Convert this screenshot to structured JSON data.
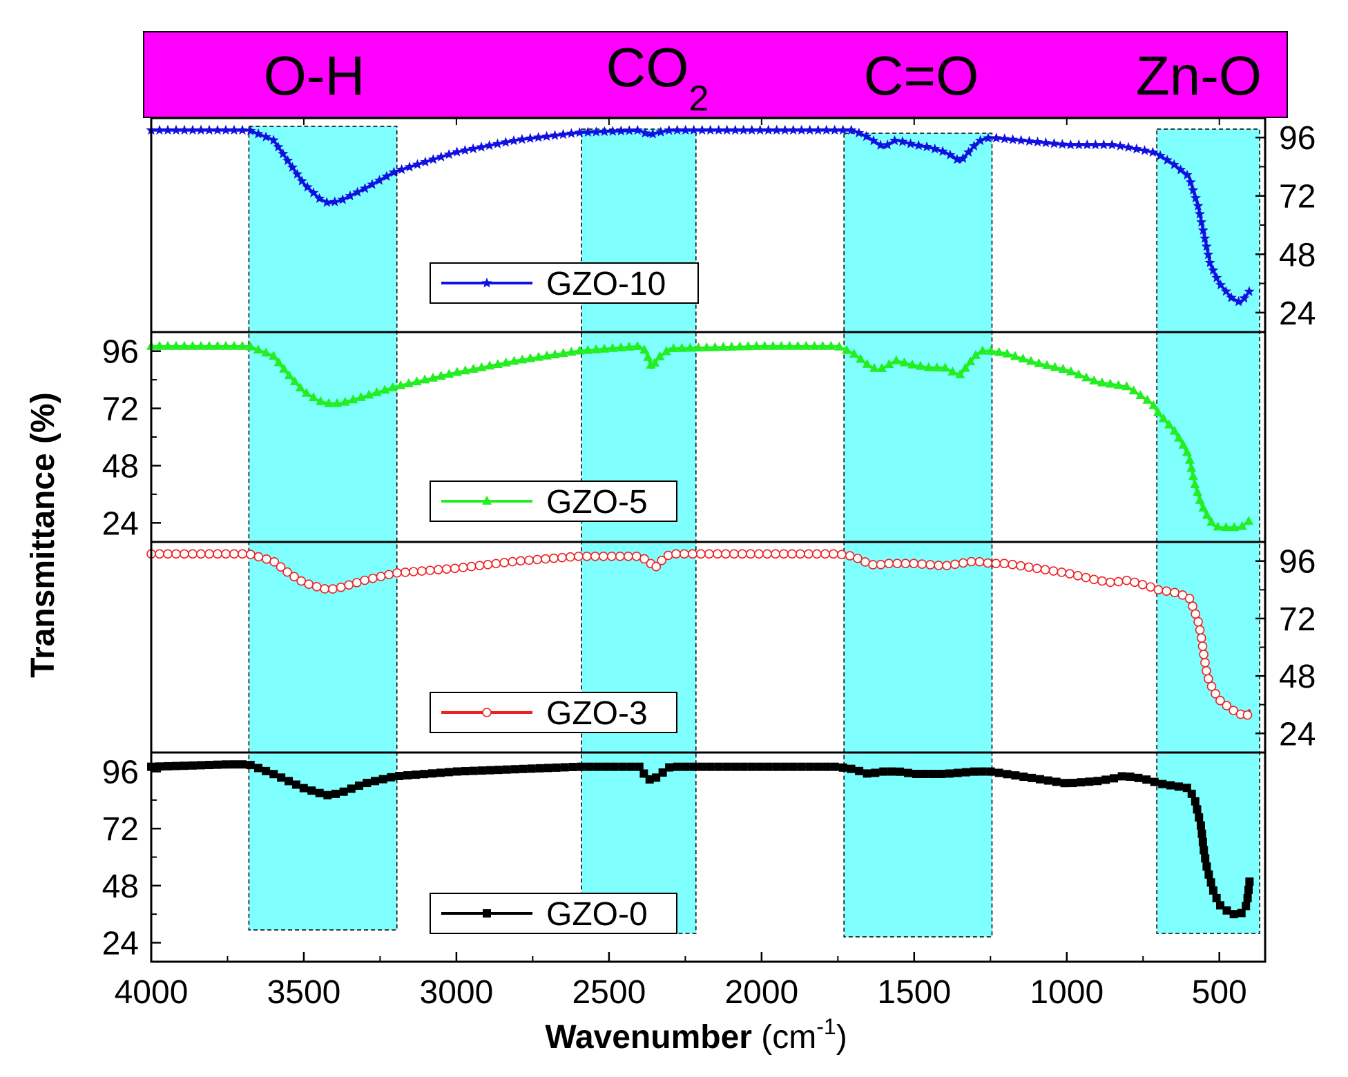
{
  "chart_data": {
    "type": "line",
    "layout": "stacked-panels",
    "xlabel": "Wavenumber",
    "xlabel_unit_prefix": " (cm",
    "xlabel_unit_sup": "-1",
    "xlabel_unit_suffix": ")",
    "ylabel": "Transmittance (%)",
    "xlim": [
      4000,
      350
    ],
    "x_ticks": [
      4000,
      3500,
      3000,
      2500,
      2000,
      1500,
      1000,
      500
    ],
    "y_ticks": [
      24,
      48,
      72,
      96
    ],
    "header_color": "#ff00ff",
    "band_color": "#80ffff",
    "bands": [
      {
        "name": "O-H",
        "text": "O-H",
        "from": 3680,
        "to": 3195
      },
      {
        "name": "CO2",
        "text": "CO",
        "subscript": "2",
        "from": 2590,
        "to": 2215
      },
      {
        "name": "C=O",
        "text": "C=O",
        "from": 1730,
        "to": 1245
      },
      {
        "name": "Zn-O",
        "text": "Zn-O",
        "from": 705,
        "to": 368
      }
    ],
    "series": [
      {
        "name": "GZO-10",
        "color": "#1010e0",
        "marker": "star",
        "ylim": [
          16,
          104
        ],
        "y_axis_side": "right",
        "x": [
          4000,
          3750,
          3680,
          3600,
          3550,
          3500,
          3450,
          3420,
          3380,
          3300,
          3200,
          3000,
          2800,
          2600,
          2400,
          2370,
          2340,
          2300,
          2000,
          1750,
          1700,
          1650,
          1600,
          1560,
          1500,
          1450,
          1400,
          1370,
          1350,
          1300,
          1280,
          1250,
          1000,
          850,
          800,
          720,
          700,
          650,
          600,
          590,
          570,
          550,
          530,
          500,
          460,
          430,
          400
        ],
        "values": [
          99,
          99,
          99,
          95,
          86,
          77,
          71,
          69,
          70,
          75,
          82,
          90,
          95,
          98,
          99,
          97,
          98,
          99,
          99,
          99,
          99,
          96,
          92,
          95,
          93,
          92,
          90,
          88,
          86,
          93,
          95,
          96,
          93,
          93,
          92,
          90,
          89,
          85,
          80,
          76,
          68,
          56,
          44,
          36,
          30,
          28,
          33
        ]
      },
      {
        "name": "GZO-5",
        "color": "#22ee22",
        "marker": "triangle",
        "ylim": [
          16,
          104
        ],
        "y_axis_side": "left",
        "x": [
          4000,
          3750,
          3680,
          3600,
          3550,
          3500,
          3450,
          3420,
          3380,
          3300,
          3200,
          3000,
          2800,
          2600,
          2400,
          2380,
          2360,
          2340,
          2300,
          2000,
          1750,
          1700,
          1650,
          1620,
          1600,
          1560,
          1500,
          1450,
          1400,
          1370,
          1350,
          1300,
          1280,
          1250,
          1200,
          1100,
          1000,
          900,
          850,
          800,
          720,
          700,
          650,
          620,
          600,
          580,
          560,
          540,
          520,
          500,
          460,
          430,
          400
        ],
        "values": [
          98,
          98,
          98,
          94,
          86,
          79,
          75,
          74,
          74,
          77,
          81,
          87,
          92,
          96,
          98,
          96,
          89,
          93,
          97,
          98,
          98,
          95,
          90,
          88,
          89,
          92,
          90,
          89,
          89,
          87,
          86,
          94,
          96,
          96,
          95,
          91,
          88,
          83,
          82,
          81,
          74,
          70,
          63,
          57,
          52,
          40,
          32,
          27,
          23,
          22,
          22,
          22,
          25
        ]
      },
      {
        "name": "GZO-3",
        "color": "#ee2020",
        "marker": "open-circle",
        "ylim": [
          16,
          104
        ],
        "y_axis_side": "right",
        "x": [
          4000,
          3750,
          3680,
          3600,
          3550,
          3500,
          3450,
          3420,
          3380,
          3300,
          3200,
          3000,
          2800,
          2600,
          2400,
          2370,
          2350,
          2330,
          2300,
          2000,
          1750,
          1700,
          1650,
          1620,
          1600,
          1500,
          1400,
          1300,
          1250,
          1200,
          1100,
          1000,
          900,
          850,
          800,
          720,
          700,
          650,
          600,
          590,
          570,
          560,
          550,
          540,
          520,
          500,
          460,
          430,
          410,
          400
        ],
        "values": [
          99,
          99,
          99,
          96,
          91,
          87,
          85,
          84,
          85,
          88,
          91,
          93,
          96,
          98,
          98,
          96,
          93,
          96,
          99,
          99,
          99,
          98,
          95,
          94,
          95,
          95,
          94,
          96,
          95,
          95,
          93,
          91,
          88,
          87,
          88,
          85,
          84,
          83,
          81,
          78,
          71,
          65,
          56,
          48,
          42,
          38,
          34,
          32,
          31,
          34
        ]
      },
      {
        "name": "GZO-0",
        "color": "#000000",
        "marker": "square",
        "ylim": [
          16,
          104
        ],
        "y_axis_side": "left",
        "x": [
          4000,
          3750,
          3680,
          3600,
          3550,
          3500,
          3450,
          3420,
          3380,
          3300,
          3200,
          3000,
          2800,
          2600,
          2400,
          2380,
          2360,
          2340,
          2300,
          2000,
          1750,
          1700,
          1650,
          1600,
          1550,
          1500,
          1400,
          1300,
          1250,
          1200,
          1100,
          1000,
          900,
          850,
          820,
          800,
          750,
          720,
          700,
          650,
          600,
          580,
          560,
          550,
          540,
          520,
          500,
          460,
          430,
          410,
          400
        ],
        "values": [
          98,
          99,
          99,
          95,
          92,
          89,
          87,
          86,
          87,
          91,
          94,
          96,
          97,
          98,
          98,
          94,
          92,
          94,
          98,
          98,
          98,
          97,
          95,
          96,
          96,
          95,
          95,
          96,
          96,
          95,
          93,
          91,
          92,
          93,
          94,
          94,
          93,
          92,
          91,
          90,
          89,
          84,
          73,
          62,
          55,
          46,
          40,
          36,
          36,
          40,
          51
        ]
      }
    ]
  }
}
